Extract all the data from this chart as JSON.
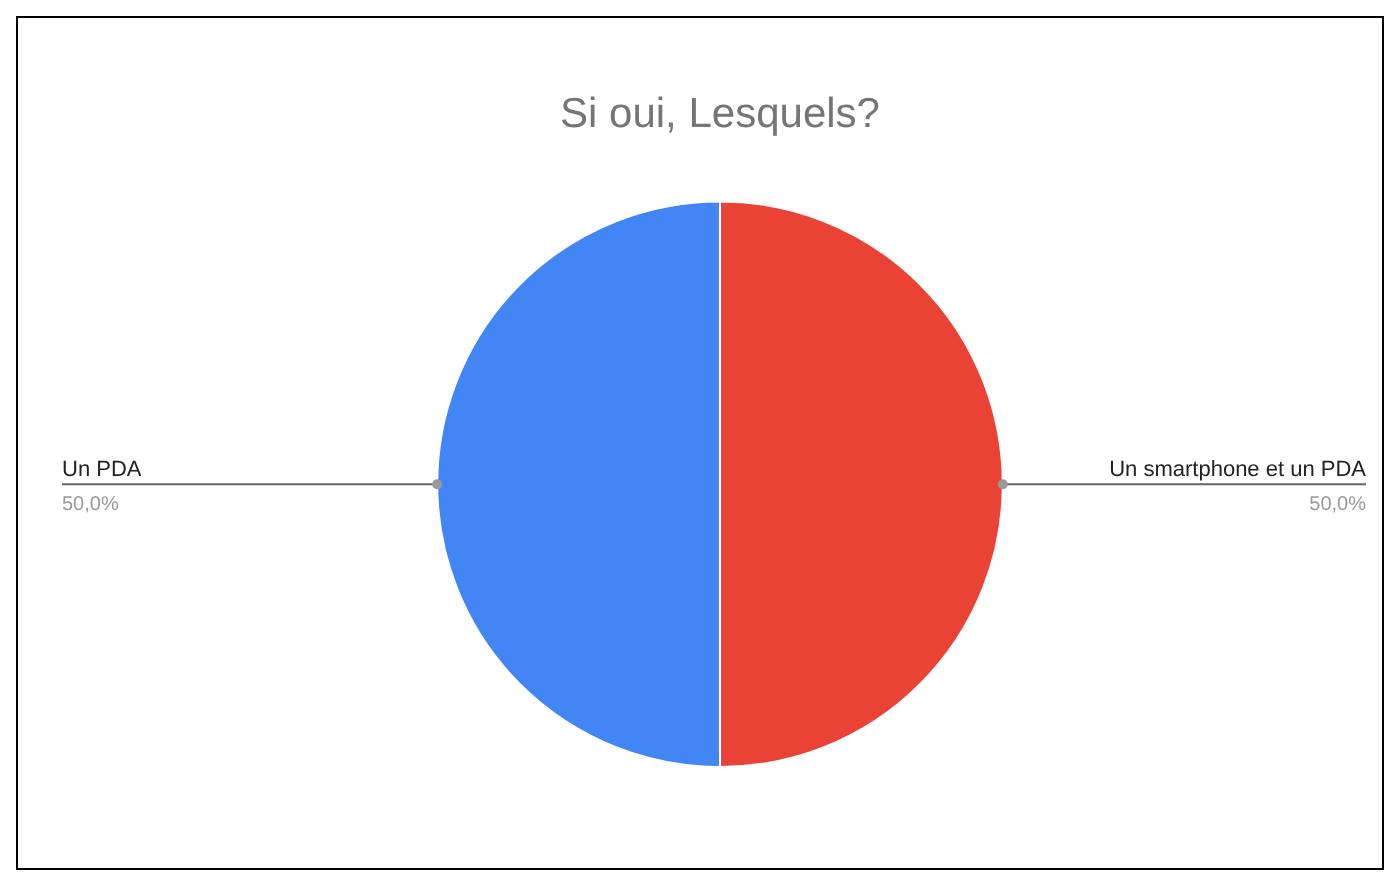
{
  "chart_data": {
    "type": "pie",
    "title": "Si oui, Lesquels?",
    "categories": [
      "Un smartphone et un PDA",
      "Un PDA"
    ],
    "values": [
      50,
      50
    ],
    "colors": [
      "#ea4335",
      "#4285f4"
    ],
    "value_labels": [
      "50,0%",
      "50,0%"
    ],
    "legend": false
  }
}
